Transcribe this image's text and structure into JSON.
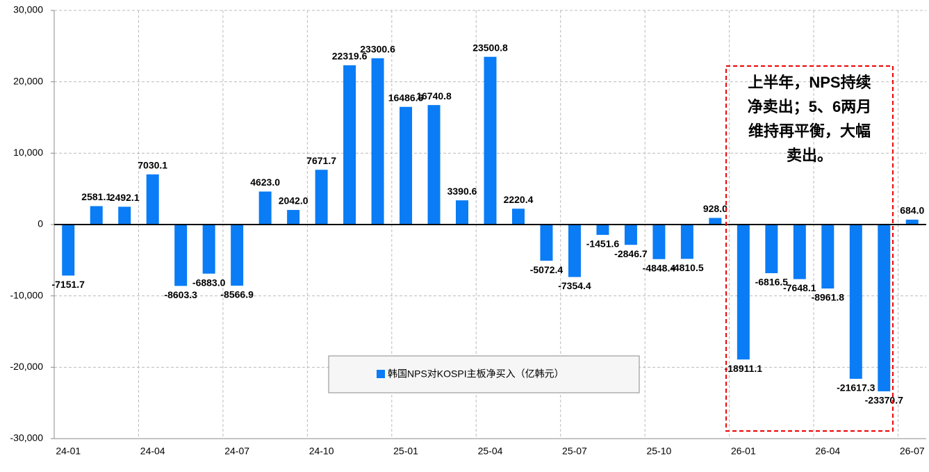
{
  "chart_data": {
    "type": "bar",
    "categories": [
      "24-01",
      null,
      null,
      "24-04",
      null,
      null,
      "24-07",
      null,
      null,
      "24-10",
      null,
      null,
      "25-01",
      null,
      null,
      "25-04",
      null,
      null,
      "25-07",
      null,
      null,
      "25-10",
      null,
      null,
      "26-01",
      null,
      null,
      "26-04",
      null,
      null,
      "26-07"
    ],
    "series": [
      {
        "name": "韩国NPS对KOSPI主板净买入（亿韩元）",
        "color": "#0a7cf5",
        "values": [
          -7151.7,
          2581.1,
          2492.1,
          7030.1,
          -8603.3,
          -6883.0,
          -8566.9,
          4623.0,
          2042.0,
          7671.7,
          22319.6,
          23300.6,
          16486.6,
          16740.8,
          3390.6,
          23500.8,
          2220.4,
          -5072.4,
          -7354.4,
          -1451.6,
          -2846.7,
          -4848.4,
          -4810.5,
          928.0,
          -18911.1,
          -6816.5,
          -7648.1,
          -8961.8,
          -21617.3,
          -23370.7,
          684.0
        ],
        "value_labels": [
          "-7151.7",
          "2581.1",
          "2492.1",
          "7030.1",
          "-8603.3",
          "-6883.0",
          "-8566.9",
          "4623.0",
          "2042.0",
          "7671.7",
          "22319.6",
          "23300.6",
          "16486.6",
          "16740.8",
          "3390.6",
          "23500.8",
          "2220.4",
          "-5072.4",
          "-7354.4",
          "-1451.6",
          "-2846.7",
          "-4848.4",
          "-4810.5",
          "928.0",
          "-18911.1",
          "-6816.5",
          "-7648.1",
          "-8961.8",
          "-21617.3",
          "-23370.7",
          "684.0"
        ]
      }
    ],
    "ylim": [
      -30000,
      30000
    ],
    "yticks": [
      {
        "value": -30000,
        "label": "-30,000"
      },
      {
        "value": -20000,
        "label": "-20,000"
      },
      {
        "value": -10000,
        "label": "-10,000"
      },
      0,
      {
        "value": 10000,
        "label": "10,000"
      },
      {
        "value": 20000,
        "label": "20,000"
      },
      {
        "value": 30000,
        "label": "30,000"
      }
    ],
    "grid": true,
    "annotation": [
      "上半年，NPS持续",
      "净卖出；5、6两月",
      "维持再平衡，大幅",
      "卖出。"
    ]
  }
}
